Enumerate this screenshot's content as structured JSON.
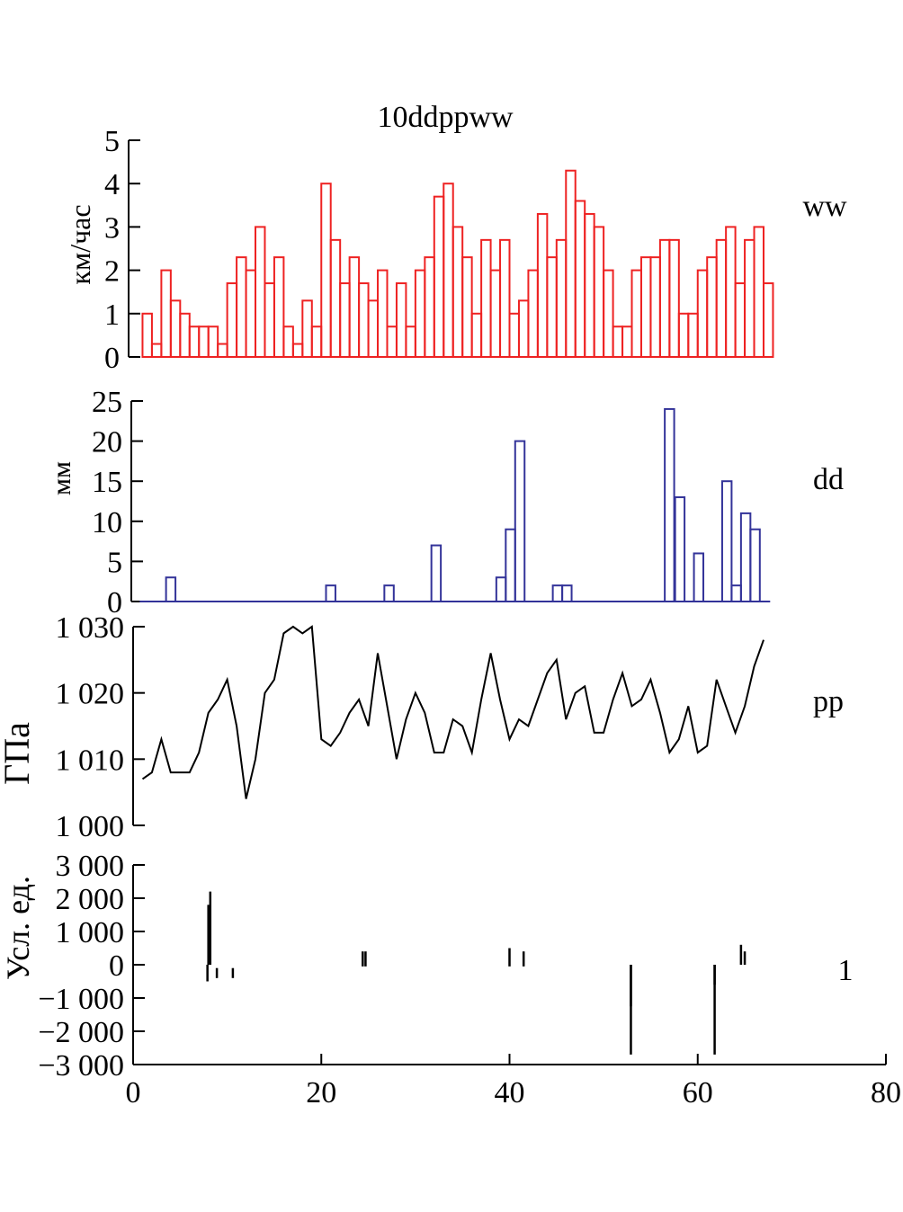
{
  "title": "10ddppww",
  "chart_data": [
    {
      "type": "bar",
      "series_label": "ww",
      "ylabel": "км/час",
      "ylim": [
        0,
        5
      ],
      "yticks": [
        0,
        1,
        2,
        3,
        4,
        5
      ],
      "ytick_labels": [
        "0",
        "1",
        "2",
        "3",
        "4",
        "5"
      ],
      "color": "#ee2222",
      "bar_width": 1,
      "x_start": 1,
      "values": [
        1,
        0.3,
        2,
        1.3,
        1,
        0.7,
        0.7,
        0.7,
        0.3,
        1.7,
        2.3,
        2,
        3,
        1.7,
        2.3,
        0.7,
        0.3,
        1.3,
        0.7,
        4,
        2.7,
        1.7,
        2.3,
        1.7,
        1.3,
        2,
        0.7,
        1.7,
        0.7,
        2,
        2.3,
        3.7,
        4,
        3,
        2.3,
        1,
        2.7,
        2,
        2.7,
        1,
        1.3,
        2,
        3.3,
        2.3,
        2.7,
        4.3,
        3.6,
        3.3,
        3,
        2,
        0.7,
        0.7,
        2,
        2.3,
        2.3,
        2.7,
        2.7,
        1,
        1,
        2,
        2.3,
        2.7,
        3,
        1.7,
        2.7,
        3,
        1.7
      ]
    },
    {
      "type": "bar",
      "series_label": "dd",
      "ylabel": "мм",
      "ylim": [
        0,
        25
      ],
      "yticks": [
        0,
        5,
        10,
        15,
        20,
        25
      ],
      "ytick_labels": [
        "0",
        "5",
        "10",
        "15",
        "20",
        "25"
      ],
      "color": "#333399",
      "bar_width": 1,
      "baseline_range": [
        0.7,
        67.7
      ],
      "bars": [
        {
          "x": 3.5,
          "value": 3
        },
        {
          "x": 20.5,
          "value": 2
        },
        {
          "x": 26.7,
          "value": 2
        },
        {
          "x": 31.7,
          "value": 7
        },
        {
          "x": 38.6,
          "value": 3
        },
        {
          "x": 39.6,
          "value": 9
        },
        {
          "x": 40.6,
          "value": 20
        },
        {
          "x": 44.6,
          "value": 2
        },
        {
          "x": 45.6,
          "value": 2
        },
        {
          "x": 56.5,
          "value": 24
        },
        {
          "x": 57.6,
          "value": 13
        },
        {
          "x": 59.6,
          "value": 6
        },
        {
          "x": 62.6,
          "value": 15
        },
        {
          "x": 63.6,
          "value": 2
        },
        {
          "x": 64.6,
          "value": 11
        },
        {
          "x": 65.6,
          "value": 9
        }
      ]
    },
    {
      "type": "line",
      "series_label": "pp",
      "ylabel": "ГПа",
      "ylim": [
        1000,
        1030
      ],
      "yticks": [
        1000,
        1010,
        1020,
        1030
      ],
      "ytick_labels": [
        "1 000",
        "1 010",
        "1 020",
        "1 030"
      ],
      "color": "#000000",
      "x_start": 1,
      "values": [
        1007,
        1008,
        1013,
        1008,
        1008,
        1008,
        1011,
        1017,
        1019,
        1022,
        1015,
        1004,
        1010,
        1020,
        1022,
        1029,
        1030,
        1029,
        1030,
        1013,
        1012,
        1014,
        1017,
        1019,
        1015,
        1026,
        1018,
        1010,
        1016,
        1020,
        1017,
        1011,
        1011,
        1016,
        1015,
        1011,
        1019,
        1026,
        1019,
        1013,
        1016,
        1015,
        1019,
        1023,
        1025,
        1016,
        1020,
        1021,
        1014,
        1014,
        1019,
        1023,
        1018,
        1019,
        1022,
        1017,
        1011,
        1013,
        1018,
        1011,
        1012,
        1022,
        1018,
        1014,
        1018,
        1024,
        1028
      ]
    },
    {
      "type": "spike",
      "series_label": "1",
      "ylabel": "Усл. ед.",
      "ylim": [
        -3000,
        3000
      ],
      "yticks": [
        -3000,
        -2000,
        -1000,
        0,
        1000,
        2000,
        3000
      ],
      "ytick_labels": [
        "−3 000",
        "−2 000",
        "−1 000",
        "0",
        "1 000",
        "2 000",
        "3 000"
      ],
      "xlim": [
        0,
        80
      ],
      "xticks": [
        0,
        20,
        40,
        60,
        80
      ],
      "xtick_labels": [
        "0",
        "20",
        "40",
        "60",
        "80"
      ],
      "color": "#000000",
      "segments": [
        {
          "x": 8.0,
          "from": 0,
          "to": 1800
        },
        {
          "x": 8.2,
          "from": 0,
          "to": 2200
        },
        {
          "x": 7.9,
          "from": 0,
          "to": -500
        },
        {
          "x": 8.9,
          "from": -100,
          "to": -400
        },
        {
          "x": 10.6,
          "from": -100,
          "to": -400
        },
        {
          "x": 24.4,
          "from": 400,
          "to": -50
        },
        {
          "x": 24.7,
          "from": 400,
          "to": -50
        },
        {
          "x": 40.0,
          "from": 500,
          "to": -50
        },
        {
          "x": 41.5,
          "from": 400,
          "to": -50
        },
        {
          "x": 52.9,
          "from": 0,
          "to": -1250
        },
        {
          "x": 52.9,
          "from": 0,
          "to": -2700
        },
        {
          "x": 61.8,
          "from": 0,
          "to": -600
        },
        {
          "x": 61.8,
          "from": 0,
          "to": -2700
        },
        {
          "x": 64.6,
          "from": 600,
          "to": 0
        },
        {
          "x": 65.0,
          "from": 400,
          "to": 0
        }
      ]
    }
  ]
}
